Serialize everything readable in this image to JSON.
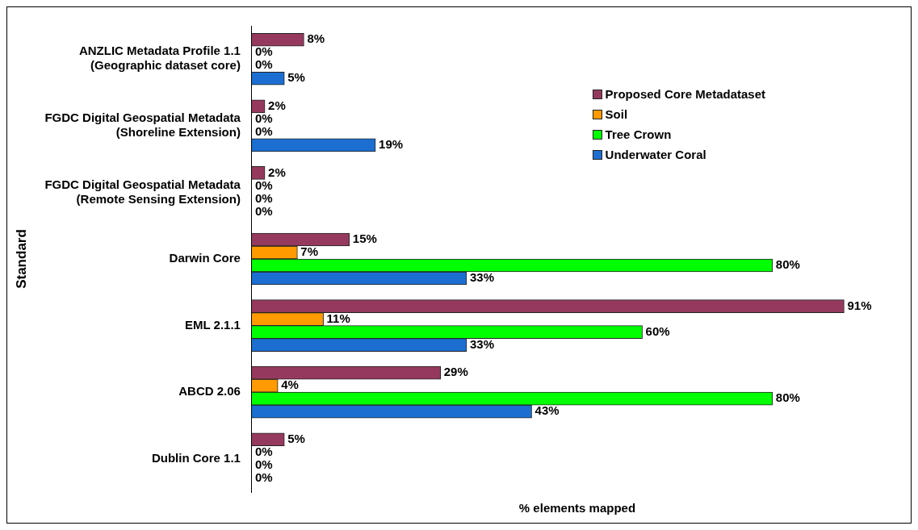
{
  "chart_data": {
    "type": "bar",
    "orientation": "horizontal",
    "xlabel": "% elements mapped",
    "ylabel": "Standard",
    "categories": [
      "ANZLIC Metadata Profile 1.1\n(Geographic dataset core)",
      "FGDC Digital Geospatial Metadata\n(Shoreline Extension)",
      "FGDC Digital Geospatial Metadata\n(Remote Sensing Extension)",
      "Darwin Core",
      "EML 2.1.1",
      "ABCD 2.06",
      "Dublin Core 1.1"
    ],
    "series": [
      {
        "name": "Proposed Core Metadataset",
        "color": "#953a5e",
        "values": [
          8,
          2,
          2,
          15,
          91,
          29,
          5
        ],
        "value_labels": [
          "8%",
          "2%",
          "2%",
          "15%",
          "91%",
          "29%",
          "5%"
        ]
      },
      {
        "name": "Soil",
        "color": "#ff9a00",
        "values": [
          0,
          0,
          0,
          7,
          11,
          4,
          0
        ],
        "value_labels": [
          "0%",
          "0%",
          "0%",
          "7%",
          "11%",
          "4%",
          "0%"
        ]
      },
      {
        "name": "Tree Crown",
        "color": "#00ff00",
        "values": [
          0,
          0,
          0,
          80,
          60,
          80,
          0
        ],
        "value_labels": [
          "0%",
          "0%",
          "0%",
          "80%",
          "60%",
          "80%",
          "0%"
        ]
      },
      {
        "name": "Underwater Coral",
        "color": "#1c6fd1",
        "values": [
          5,
          19,
          0,
          33,
          33,
          43,
          0
        ],
        "value_labels": [
          "5%",
          "19%",
          "0%",
          "33%",
          "33%",
          "43%",
          "0%"
        ]
      }
    ],
    "legend": "top right",
    "grid": false
  }
}
